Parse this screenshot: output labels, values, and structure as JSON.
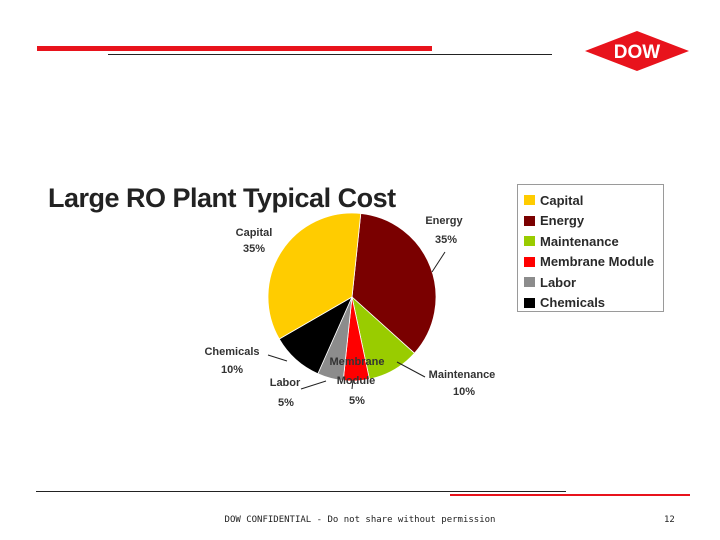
{
  "logo": {
    "text": "DOW",
    "color": "#e8131c"
  },
  "slide": {
    "title": "Large RO Plant Typical Cost"
  },
  "footer": {
    "confidential": "DOW CONFIDENTIAL - Do not share without permission",
    "page": "12"
  },
  "chart_data": {
    "type": "pie",
    "title": "Large RO Plant Typical Cost",
    "categories": [
      "Capital",
      "Energy",
      "Maintenance",
      "Membrane Module",
      "Labor",
      "Chemicals"
    ],
    "values": [
      35,
      35,
      10,
      5,
      5,
      10
    ],
    "unit": "%",
    "labels": [
      {
        "name": "Capital",
        "value": "35%"
      },
      {
        "name": "Energy",
        "value": "35%"
      },
      {
        "name": "Maintenance",
        "value": "10%"
      },
      {
        "name": "Membrane Module",
        "line1": "Membrane",
        "line2": "Module",
        "value": "5%"
      },
      {
        "name": "Labor",
        "value": "5%"
      },
      {
        "name": "Chemicals",
        "value": "10%"
      }
    ],
    "colors": [
      "#ffcc00",
      "#7a0000",
      "#99cc00",
      "#ff0000",
      "#8c8c8c",
      "#000000"
    ],
    "legend": {
      "position": "right",
      "items": [
        "Capital",
        "Energy",
        "Maintenance",
        "Membrane Module",
        "Labor",
        "Chemicals"
      ]
    }
  }
}
